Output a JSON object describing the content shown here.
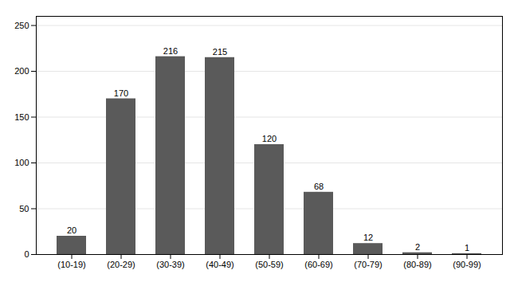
{
  "chart_data": {
    "type": "bar",
    "categories": [
      "(10-19)",
      "(20-29)",
      "(30-39)",
      "(40-49)",
      "(50-59)",
      "(60-69)",
      "(70-79)",
      "(80-89)",
      "(90-99)"
    ],
    "values": [
      20,
      170,
      216,
      215,
      120,
      68,
      12,
      2,
      1
    ],
    "color": "#5a5a5a",
    "ylim": [
      0,
      260
    ],
    "yticks": [
      0,
      50,
      100,
      150,
      200,
      250
    ],
    "grid": true,
    "data_labels": true
  }
}
